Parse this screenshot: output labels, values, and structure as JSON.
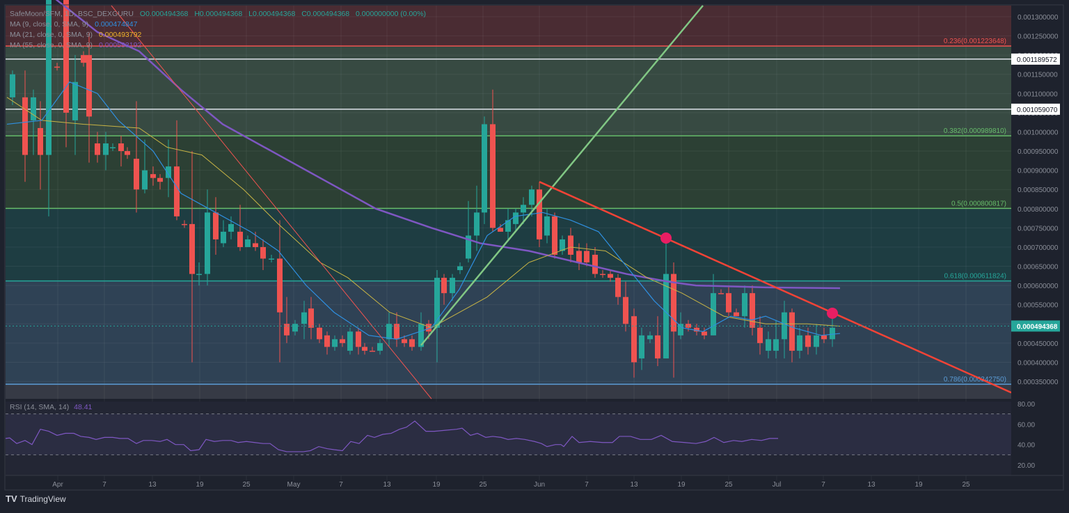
{
  "header": {
    "symbol": "SafeMoon/SFM, 1D, BSC_DEXGURU",
    "open": "O0.000494368",
    "high": "H0.000494368",
    "low": "L0.000494368",
    "close": "C0.000494368",
    "change": "0.000000000 (0.00%)"
  },
  "indicators": [
    {
      "label": "MA (9, close, 0, SMA, 9)",
      "value": "0.000474847",
      "color": "#2f8fe0"
    },
    {
      "label": "MA (21, close, 0, SMA, 9)",
      "value": "0.000493792",
      "color": "#f0b429"
    },
    {
      "label": "MA (55, close, 0, SMA, 9)",
      "value": "0.000593192",
      "color": "#7e57c2"
    }
  ],
  "rsi": {
    "label": "RSI (14, SMA, 14)",
    "value": "48.41",
    "color": "#7e57c2"
  },
  "brand": "TradingView",
  "colors": {
    "up": "#26a69a",
    "down": "#ef5350",
    "background": "#1e222d"
  },
  "chart_data": [
    {
      "type": "candlestick",
      "title": "SafeMoon/SFM, 1D, BSC_DEXGURU",
      "price_axis": {
        "ticks": [
          "0.001300000",
          "0.001250000",
          "0.001200000",
          "0.001150000",
          "0.001100000",
          "0.001050000",
          "0.001000000",
          "0.000950000",
          "0.000900000",
          "0.000850000",
          "0.000800000",
          "0.000750000",
          "0.000700000",
          "0.000650000",
          "0.000600000",
          "0.000550000",
          "0.000500000",
          "0.000450000",
          "0.000400000",
          "0.000350000"
        ],
        "range": [
          0.00032,
          0.00132
        ],
        "highlighted_labels": [
          {
            "value": "0.001189572",
            "style": "white"
          },
          {
            "value": "0.001059070",
            "style": "white"
          },
          {
            "value": "0.000494368",
            "style": "last-price",
            "color": "#26a69a"
          }
        ]
      },
      "time_axis": {
        "ticks": [
          "Apr",
          "7",
          "13",
          "19",
          "25",
          "May",
          "7",
          "13",
          "19",
          "25",
          "Jun",
          "7",
          "13",
          "19",
          "25",
          "Jul",
          "7",
          "13",
          "19",
          "25"
        ]
      },
      "fibonacci": [
        {
          "ratio": "0.236",
          "price": "0.001223648",
          "label": "0.236(0.001223648)",
          "color": "#ef5350"
        },
        {
          "ratio": "0.382",
          "price": "0.000989810",
          "label": "0.382(0.000989810)",
          "color": "#66bb6a"
        },
        {
          "ratio": "0.5",
          "price": "0.000800817",
          "label": "0.5(0.000800817)",
          "color": "#66bb6a"
        },
        {
          "ratio": "0.618",
          "price": "0.000611824",
          "label": "0.618(0.000611824)",
          "color": "#26a69a"
        },
        {
          "ratio": "0.786",
          "price": "0.000342750",
          "label": "0.786(0.000342750)",
          "color": "#5b9bd5"
        }
      ],
      "horizontal_lines": [
        "0.001189572",
        "0.001059070"
      ],
      "annotations": [
        {
          "type": "trendline",
          "color": "#ef5350",
          "description": "descending resistance from ~Jun 1 high"
        },
        {
          "type": "trendline",
          "color": "#81c784",
          "description": "ascending support from mid-May low"
        },
        {
          "type": "marker",
          "color": "#e91e63",
          "description": "resistance touch ~Jun 17"
        },
        {
          "type": "marker",
          "color": "#e91e63",
          "description": "resistance touch ~Jul 8"
        }
      ],
      "series": [
        {
          "name": "MA 9",
          "last": 0.000474847
        },
        {
          "name": "MA 21",
          "last": 0.000493792
        },
        {
          "name": "MA 55",
          "last": 0.000593192
        }
      ],
      "last_price": 0.000494368
    },
    {
      "type": "line",
      "title": "RSI (14, SMA, 14)",
      "y_ticks": [
        "80.00",
        "60.00",
        "40.00",
        "20.00"
      ],
      "bands": [
        70,
        30
      ],
      "last": 48.41
    }
  ]
}
